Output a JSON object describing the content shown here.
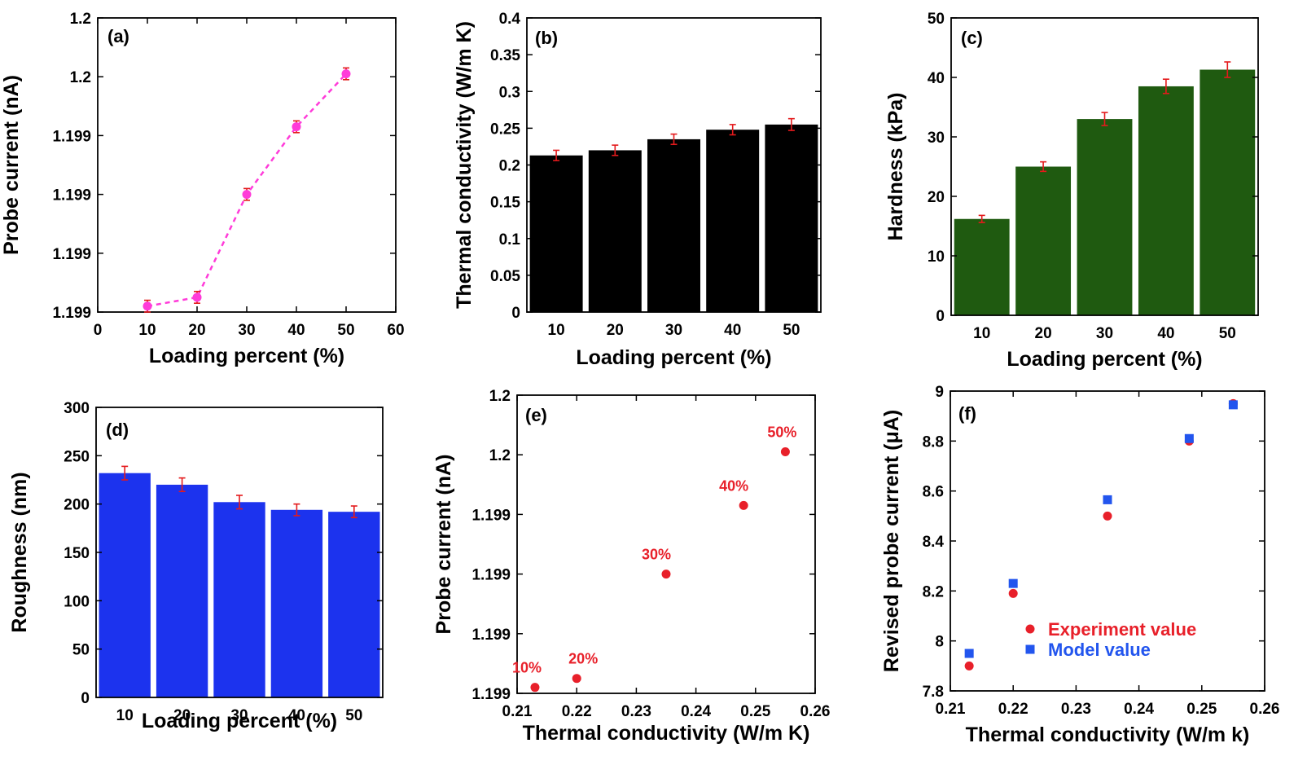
{
  "colors": {
    "pink": "#ff3bd9",
    "black": "#000000",
    "green": "#1f5a10",
    "blue": "#1c33ee",
    "red": "#e8202a",
    "model_blue": "#2255ee",
    "error": "#e41a1c"
  },
  "chart_data": [
    {
      "id": "a",
      "panel_label": "(a)",
      "type": "line",
      "xlabel": "Loading percent (%)",
      "ylabel": "Probe current (nA)",
      "xlim": [
        0,
        60
      ],
      "ylim": [
        1.199,
        1.2
      ],
      "x_ticks": [
        "0",
        "10",
        "20",
        "30",
        "40",
        "50",
        "60"
      ],
      "y_ticks": [
        "1.199",
        "1.199",
        "1.199",
        "1.199",
        "1.2",
        "1.2"
      ],
      "series": [
        {
          "x": [
            10,
            20,
            30,
            40,
            50
          ],
          "values": [
            1.19902,
            1.19905,
            1.1994,
            1.19963,
            1.19981
          ],
          "error": [
            2e-05,
            2e-05,
            2e-05,
            2e-05,
            2e-05
          ]
        }
      ]
    },
    {
      "id": "b",
      "panel_label": "(b)",
      "type": "bar",
      "xlabel": "Loading percent (%)",
      "ylabel": "Thermal conductivity (W/m K)",
      "categories": [
        "10",
        "20",
        "30",
        "40",
        "50"
      ],
      "values": [
        0.213,
        0.22,
        0.235,
        0.248,
        0.255
      ],
      "error": [
        0.007,
        0.007,
        0.007,
        0.007,
        0.008
      ],
      "ylim": [
        0,
        0.4
      ],
      "y_ticks": [
        "0",
        "0.05",
        "0.1",
        "0.15",
        "0.2",
        "0.25",
        "0.3",
        "0.35",
        "0.4"
      ]
    },
    {
      "id": "c",
      "panel_label": "(c)",
      "type": "bar",
      "xlabel": "Loading percent (%)",
      "ylabel": "Hardness (kPa)",
      "categories": [
        "10",
        "20",
        "30",
        "40",
        "50"
      ],
      "values": [
        16.2,
        25,
        33,
        38.5,
        41.3
      ],
      "error": [
        0.6,
        0.8,
        1.1,
        1.2,
        1.3
      ],
      "ylim": [
        0,
        50
      ],
      "y_ticks": [
        "0",
        "10",
        "20",
        "30",
        "40",
        "50"
      ]
    },
    {
      "id": "d",
      "panel_label": "(d)",
      "type": "bar",
      "xlabel": "Loading percent (%)",
      "ylabel": "Roughness (nm)",
      "categories": [
        "10",
        "20",
        "30",
        "40",
        "50"
      ],
      "values": [
        232,
        220,
        202,
        194,
        192
      ],
      "error": [
        7,
        7,
        7,
        6,
        6
      ],
      "ylim": [
        0,
        300
      ],
      "y_ticks": [
        "0",
        "50",
        "100",
        "150",
        "200",
        "250",
        "300"
      ]
    },
    {
      "id": "e",
      "panel_label": "(e)",
      "type": "scatter",
      "xlabel": "Thermal conductivity (W/m K)",
      "ylabel": "Probe current (nA)",
      "xlim": [
        0.21,
        0.26
      ],
      "ylim": [
        1.199,
        1.2
      ],
      "x_ticks": [
        "0.21",
        "0.22",
        "0.23",
        "0.24",
        "0.25",
        "0.26"
      ],
      "y_ticks": [
        "1.199",
        "1.199",
        "1.199",
        "1.199",
        "1.2",
        "1.2"
      ],
      "series": [
        {
          "x": [
            0.213,
            0.22,
            0.235,
            0.248,
            0.255
          ],
          "values": [
            1.19902,
            1.19905,
            1.1994,
            1.19963,
            1.19981
          ],
          "labels": [
            "10%",
            "20%",
            "30%",
            "40%",
            "50%"
          ]
        }
      ]
    },
    {
      "id": "f",
      "panel_label": "(f)",
      "type": "scatter",
      "xlabel": "Thermal conductivity (W/m k)",
      "ylabel": "Revised  probe current (μA)",
      "xlim": [
        0.21,
        0.26
      ],
      "ylim": [
        7.8,
        9
      ],
      "x_ticks": [
        "0.21",
        "0.22",
        "0.23",
        "0.24",
        "0.25",
        "0.26"
      ],
      "y_ticks": [
        "7.8",
        "8",
        "8.2",
        "8.4",
        "8.6",
        "8.8",
        "9"
      ],
      "legend_position": "center",
      "series": [
        {
          "name": "Experiment value",
          "marker": "circle",
          "x": [
            0.213,
            0.22,
            0.235,
            0.248,
            0.255
          ],
          "values": [
            7.9,
            8.19,
            8.5,
            8.8,
            8.95
          ]
        },
        {
          "name": "Model value",
          "marker": "square",
          "x": [
            0.213,
            0.22,
            0.235,
            0.248,
            0.255
          ],
          "values": [
            7.95,
            8.23,
            8.565,
            8.81,
            8.945
          ]
        }
      ]
    }
  ]
}
